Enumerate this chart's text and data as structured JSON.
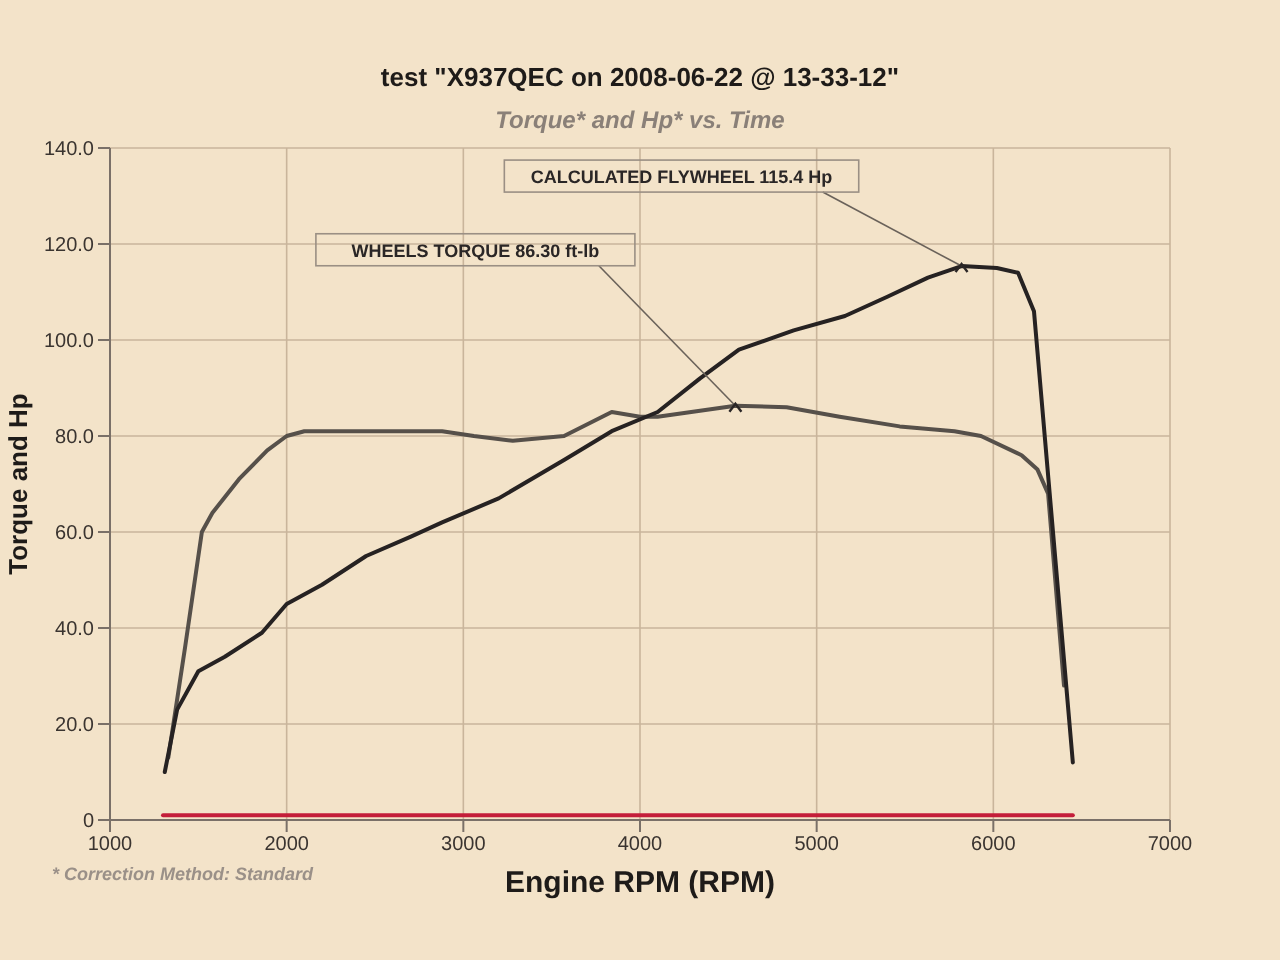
{
  "chart_data": {
    "type": "line",
    "title": "test \"X937QEC on 2008-06-22 @ 13-33-12\"",
    "subtitle": "Torque* and Hp* vs. Time",
    "xlabel": "Engine RPM (RPM)",
    "ylabel": "Torque and Hp",
    "xlim": [
      1000,
      7000
    ],
    "xticks": [
      1000,
      2000,
      3000,
      4000,
      5000,
      6000,
      7000
    ],
    "ylim": [
      0,
      140
    ],
    "yticks": [
      0,
      {
        "value": 20,
        "label": "20.0"
      },
      {
        "value": 40,
        "label": "40.0"
      },
      {
        "value": 60,
        "label": "60.0"
      },
      {
        "value": 80,
        "label": "80.0"
      },
      {
        "value": 100,
        "label": "100.0"
      },
      {
        "value": 120,
        "label": "120.0"
      },
      {
        "value": 140,
        "label": "140.0"
      }
    ],
    "grid": true,
    "series": [
      {
        "color": "#56504a",
        "x": [
          1330,
          1425,
          1520,
          1580,
          1730,
          1890,
          2000,
          2100,
          2350,
          2460,
          2730,
          2880,
          3060,
          3280,
          3570,
          3840,
          4000,
          4100,
          4540,
          4830,
          5130,
          5470,
          5780,
          5930,
          6160,
          6250,
          6310,
          6400
        ],
        "values": [
          13,
          36,
          60,
          64,
          71,
          77,
          80,
          81,
          81,
          81,
          81,
          81,
          80,
          79,
          80,
          85,
          84,
          84,
          86.3,
          86,
          84,
          82,
          81,
          80,
          76,
          73,
          68,
          28
        ]
      },
      {
        "color": "#262222",
        "x": [
          1310,
          1380,
          1500,
          1650,
          1860,
          2000,
          2200,
          2450,
          2700,
          2880,
          3200,
          3570,
          3840,
          4100,
          4340,
          4560,
          4870,
          5160,
          5400,
          5630,
          5820,
          6020,
          6140,
          6230,
          6450
        ],
        "values": [
          10,
          23,
          31,
          34,
          39,
          45,
          49,
          55,
          59,
          62,
          67,
          75,
          81,
          85,
          92,
          98,
          102,
          105,
          109,
          113,
          115.4,
          115,
          114,
          106,
          12
        ]
      },
      {
        "color": "#c41e3a",
        "x": [
          1300,
          6450
        ],
        "values": [
          1,
          1
        ]
      }
    ],
    "annotations": [
      {
        "text": "CALCULATED FLYWHEEL 115.4 Hp",
        "x": 5820,
        "y": 115.4
      },
      {
        "text": "WHEELS TORQUE 86.30 ft-lb",
        "x": 4540,
        "y": 86.3
      },
      "* Correction Method: Standard"
    ]
  }
}
